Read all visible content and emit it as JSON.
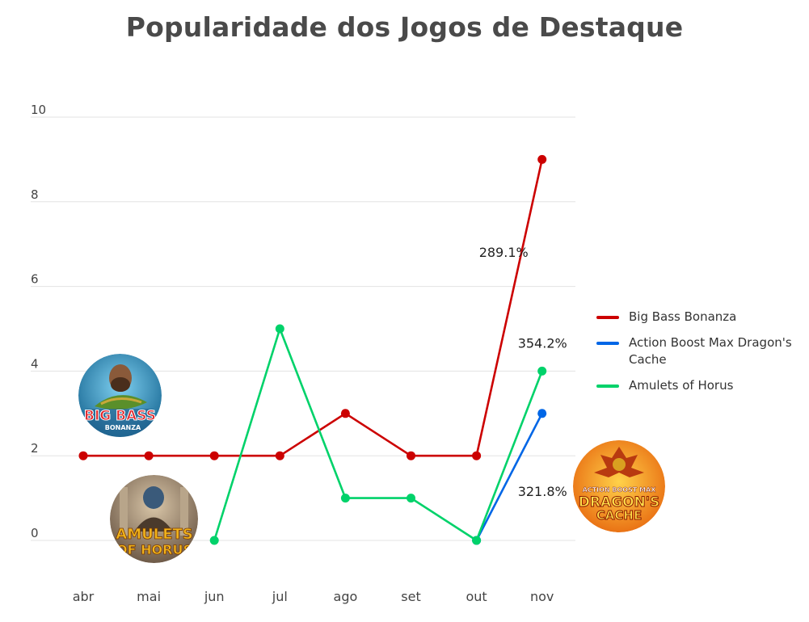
{
  "chart_data": {
    "type": "line",
    "title": "Popularidade dos Jogos de Destaque",
    "categories": [
      "abr",
      "mai",
      "jun",
      "jul",
      "ago",
      "set",
      "out",
      "nov"
    ],
    "ylim": [
      0,
      10
    ],
    "yticks": [
      0,
      2,
      4,
      6,
      8,
      10
    ],
    "grid": true,
    "legend": "right",
    "series": [
      {
        "name": "Big Bass Bonanza",
        "color": "#cc0000",
        "values": [
          2,
          2,
          2,
          2,
          3,
          2,
          2,
          9
        ]
      },
      {
        "name": "Action Boost Max Dragon's Cache",
        "color": "#0066e6",
        "values": [
          null,
          null,
          null,
          null,
          null,
          null,
          0,
          3
        ]
      },
      {
        "name": "Amulets of Horus",
        "color": "#00d26a",
        "values": [
          null,
          null,
          0,
          5,
          1,
          1,
          0,
          4
        ]
      }
    ],
    "annotations": [
      {
        "text": "289.1%",
        "series": "Big Bass Bonanza"
      },
      {
        "text": "354.2%",
        "series": "Amulets of Horus"
      },
      {
        "text": "321.8%",
        "series": "Action Boost Max Dragon's Cache"
      }
    ]
  },
  "badges": {
    "big_bass": {
      "line1": "BIG BASS",
      "line2": "BONANZA"
    },
    "amulets": {
      "line1": "AMULETS",
      "line2": "OF HORUS"
    },
    "dragon": {
      "line1": "ACTION BOOST MAX",
      "line2": "DRAGON'S",
      "line3": "CACHE"
    }
  }
}
